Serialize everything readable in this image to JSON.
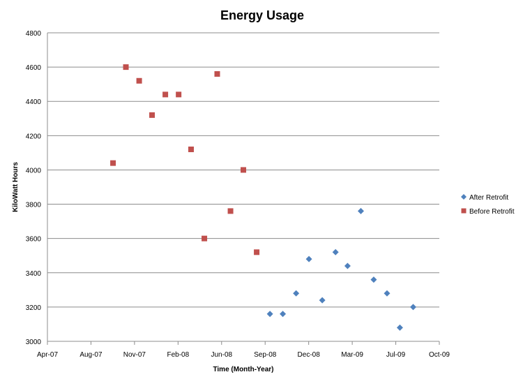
{
  "chart_data": {
    "type": "scatter",
    "title": "Energy Usage",
    "xlabel": "Time (Month-Year)",
    "ylabel": "KiloWatt Hours",
    "x_ticks": [
      "Apr-07",
      "Aug-07",
      "Nov-07",
      "Feb-08",
      "Jun-08",
      "Sep-08",
      "Dec-08",
      "Mar-09",
      "Jul-09",
      "Oct-09"
    ],
    "xlim": [
      "2007-04-01",
      "2009-10-01"
    ],
    "ylim": [
      3000,
      4800
    ],
    "y_ticks": [
      3000,
      3200,
      3400,
      3600,
      3800,
      4000,
      4200,
      4400,
      4600,
      4800
    ],
    "grid": "horizontal",
    "legend_position": "right",
    "series": [
      {
        "name": "After Retrofit",
        "marker": "diamond",
        "color": "#4F81BD",
        "points": [
          {
            "x": "2008-09-01",
            "y": 3160
          },
          {
            "x": "2008-10-01",
            "y": 3160
          },
          {
            "x": "2008-11-01",
            "y": 3280
          },
          {
            "x": "2008-12-01",
            "y": 3480
          },
          {
            "x": "2009-01-01",
            "y": 3240
          },
          {
            "x": "2009-02-01",
            "y": 3520
          },
          {
            "x": "2009-03-01",
            "y": 3440
          },
          {
            "x": "2009-04-01",
            "y": 3760
          },
          {
            "x": "2009-05-01",
            "y": 3360
          },
          {
            "x": "2009-06-01",
            "y": 3280
          },
          {
            "x": "2009-07-01",
            "y": 3080
          },
          {
            "x": "2009-08-01",
            "y": 3200
          }
        ]
      },
      {
        "name": "Before Retrofit",
        "marker": "square",
        "color": "#C0504D",
        "points": [
          {
            "x": "2007-09-01",
            "y": 4040
          },
          {
            "x": "2007-10-01",
            "y": 4600
          },
          {
            "x": "2007-11-01",
            "y": 4520
          },
          {
            "x": "2007-12-01",
            "y": 4320
          },
          {
            "x": "2008-01-01",
            "y": 4440
          },
          {
            "x": "2008-02-01",
            "y": 4440
          },
          {
            "x": "2008-03-01",
            "y": 4120
          },
          {
            "x": "2008-04-01",
            "y": 3600
          },
          {
            "x": "2008-05-01",
            "y": 4560
          },
          {
            "x": "2008-06-01",
            "y": 3760
          },
          {
            "x": "2008-07-01",
            "y": 4000
          },
          {
            "x": "2008-08-01",
            "y": 3520
          }
        ]
      }
    ]
  }
}
